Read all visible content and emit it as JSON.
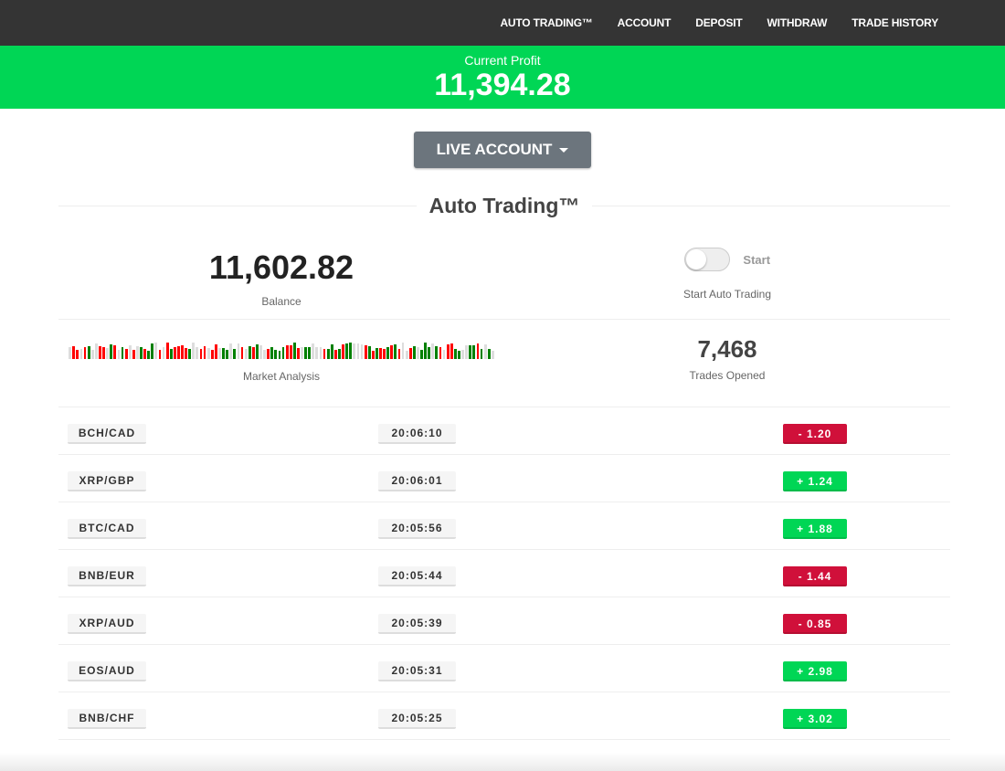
{
  "nav": {
    "items": [
      "AUTO TRADING™",
      "ACCOUNT",
      "DEPOSIT",
      "WITHDRAW",
      "TRADE HISTORY"
    ]
  },
  "profit": {
    "label": "Current Profit",
    "value": "11,394.28"
  },
  "account_button": "LIVE ACCOUNT",
  "section_title": "Auto Trading™",
  "balance": {
    "value": "11,602.82",
    "label": "Balance"
  },
  "auto": {
    "toggle_label": "Start",
    "caption": "Start Auto Trading",
    "enabled": false
  },
  "market": {
    "label": "Market Analysis",
    "bar_colors": "lrrlrgllrrlgrlgrlrlgrgglrlrgrrrrgllrrlrrlgglglrlgrgllrggggrrgrlgglllrggrgrgglllrgrgrrgrgrllrglggglgrlrrggllggrglgl"
  },
  "trades_opened": {
    "value": "7,468",
    "label": "Trades Opened"
  },
  "colors": {
    "green": "#00d655",
    "red": "#d0103a",
    "bar_red": "#ff0000",
    "bar_green": "#008000",
    "bar_light": "#dddddd"
  },
  "trades": [
    {
      "pair": "BCH/CAD",
      "time": "20:06:10",
      "amount": "- 1.20",
      "dir": "down"
    },
    {
      "pair": "XRP/GBP",
      "time": "20:06:01",
      "amount": "+ 1.24",
      "dir": "up"
    },
    {
      "pair": "BTC/CAD",
      "time": "20:05:56",
      "amount": "+ 1.88",
      "dir": "up"
    },
    {
      "pair": "BNB/EUR",
      "time": "20:05:44",
      "amount": "- 1.44",
      "dir": "down"
    },
    {
      "pair": "XRP/AUD",
      "time": "20:05:39",
      "amount": "- 0.85",
      "dir": "down"
    },
    {
      "pair": "EOS/AUD",
      "time": "20:05:31",
      "amount": "+ 2.98",
      "dir": "up"
    },
    {
      "pair": "BNB/CHF",
      "time": "20:05:25",
      "amount": "+ 3.02",
      "dir": "up"
    }
  ]
}
